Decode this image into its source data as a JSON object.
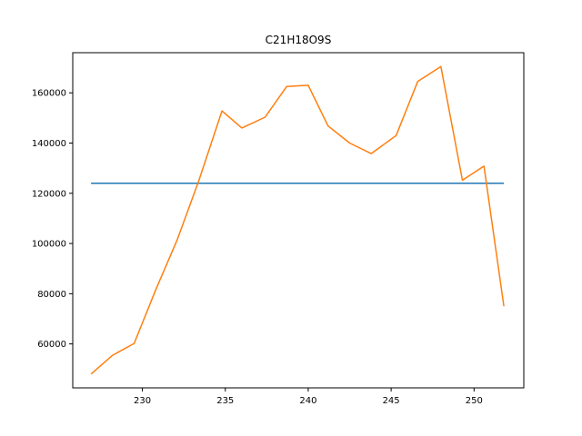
{
  "chart_data": {
    "type": "line",
    "title": "C21H18O9S",
    "xlabel": "",
    "ylabel": "",
    "xlim": [
      225.8,
      253.0
    ],
    "ylim": [
      42500,
      176000
    ],
    "x_ticks": [
      230,
      235,
      240,
      245,
      250
    ],
    "y_ticks": [
      60000,
      80000,
      100000,
      120000,
      140000,
      160000
    ],
    "grid": false,
    "series": [
      {
        "color": "#1f77b4",
        "x": [
          226.9,
          251.8
        ],
        "y": [
          124000,
          124000
        ]
      },
      {
        "color": "#ff7f0e",
        "x": [
          226.9,
          228.2,
          229.5,
          230.8,
          232.1,
          233.4,
          234.8,
          236.0,
          237.4,
          238.7,
          240.0,
          241.2,
          242.5,
          243.8,
          245.3,
          246.6,
          248.0,
          249.3,
          250.6,
          251.8
        ],
        "y": [
          48000,
          55500,
          60200,
          81500,
          101500,
          125000,
          152800,
          146000,
          150300,
          162500,
          163000,
          146800,
          140000,
          135800,
          143000,
          164500,
          170500,
          125200,
          130800,
          75000
        ]
      }
    ]
  }
}
